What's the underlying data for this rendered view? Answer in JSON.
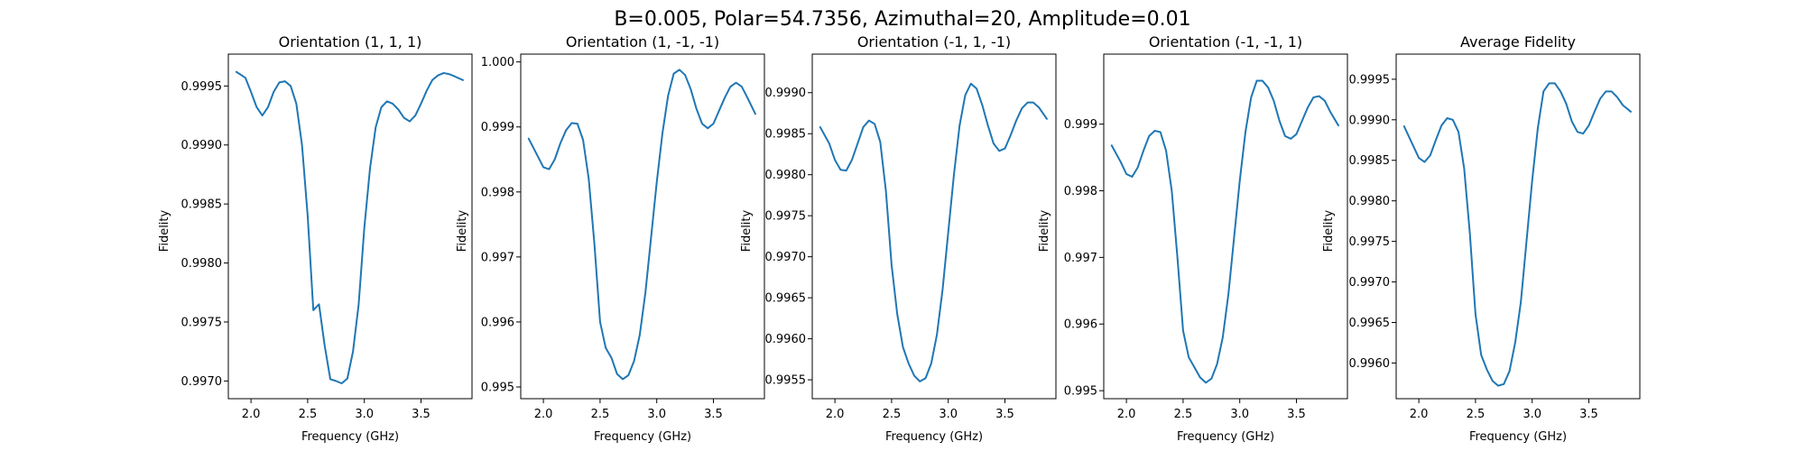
{
  "figure": {
    "suptitle": "B=0.005, Polar=54.7356, Azimuthal=20, Amplitude=0.01",
    "line_color": "#1f77b4"
  },
  "chart_data": [
    {
      "type": "line",
      "title": "Orientation (1, 1, 1)",
      "xlabel": "Frequency (GHz)",
      "ylabel": "Fidelity",
      "xlim": [
        1.8,
        3.95
      ],
      "ylim": [
        0.99685,
        0.99977
      ],
      "xticks": [
        2.0,
        2.5,
        3.0,
        3.5
      ],
      "xticklabels": [
        "2.0",
        "2.5",
        "3.0",
        "3.5"
      ],
      "yticks": [
        0.997,
        0.9975,
        0.998,
        0.9985,
        0.999,
        0.9995
      ],
      "yticklabels": [
        "0.9970",
        "0.9975",
        "0.9980",
        "0.9985",
        "0.9990",
        "0.9995"
      ],
      "grid": false,
      "series": [
        {
          "x": [
            1.87,
            1.95,
            2.0,
            2.05,
            2.1,
            2.15,
            2.2,
            2.25,
            2.3,
            2.35,
            2.4,
            2.45,
            2.5,
            2.55,
            2.6,
            2.65,
            2.7,
            2.75,
            2.8,
            2.85,
            2.9,
            2.95,
            3.0,
            3.05,
            3.1,
            3.15,
            3.2,
            3.25,
            3.3,
            3.35,
            3.4,
            3.45,
            3.5,
            3.55,
            3.6,
            3.65,
            3.7,
            3.75,
            3.8,
            3.87
          ],
          "values": [
            0.99962,
            0.99957,
            0.99945,
            0.99932,
            0.99925,
            0.99932,
            0.99945,
            0.99953,
            0.99954,
            0.9995,
            0.99935,
            0.999,
            0.9984,
            0.9976,
            0.99765,
            0.9973,
            0.997015,
            0.997,
            0.99698,
            0.99702,
            0.99725,
            0.99765,
            0.9983,
            0.9988,
            0.99915,
            0.99932,
            0.99937,
            0.99935,
            0.9993,
            0.99923,
            0.9992,
            0.99925,
            0.99935,
            0.99946,
            0.99955,
            0.99959,
            0.99961,
            0.9996,
            0.99958,
            0.99955
          ]
        }
      ]
    },
    {
      "type": "line",
      "title": "Orientation (1, -1, -1)",
      "xlabel": "Frequency (GHz)",
      "ylabel": "Fidelity",
      "xlim": [
        1.8,
        3.95
      ],
      "ylim": [
        0.99482,
        1.00012
      ],
      "xticks": [
        2.0,
        2.5,
        3.0,
        3.5
      ],
      "xticklabels": [
        "2.0",
        "2.5",
        "3.0",
        "3.5"
      ],
      "yticks": [
        0.995,
        0.996,
        0.997,
        0.998,
        0.999,
        1.0
      ],
      "yticklabels": [
        "0.995",
        "0.996",
        "0.997",
        "0.998",
        "0.999",
        "1.000"
      ],
      "grid": false,
      "series": [
        {
          "x": [
            1.87,
            1.95,
            2.0,
            2.05,
            2.1,
            2.15,
            2.2,
            2.25,
            2.3,
            2.35,
            2.4,
            2.45,
            2.5,
            2.55,
            2.6,
            2.65,
            2.7,
            2.75,
            2.8,
            2.85,
            2.9,
            2.95,
            3.0,
            3.05,
            3.1,
            3.15,
            3.2,
            3.25,
            3.3,
            3.35,
            3.4,
            3.45,
            3.5,
            3.55,
            3.6,
            3.65,
            3.7,
            3.75,
            3.8,
            3.87
          ],
          "values": [
            0.99882,
            0.99855,
            0.99838,
            0.99835,
            0.9985,
            0.99875,
            0.99895,
            0.99906,
            0.99905,
            0.9988,
            0.9982,
            0.9972,
            0.996,
            0.9956,
            0.99545,
            0.9952,
            0.99512,
            0.99518,
            0.9954,
            0.9958,
            0.99645,
            0.9973,
            0.99815,
            0.9989,
            0.99948,
            0.99982,
            0.99988,
            0.9998,
            0.99958,
            0.99928,
            0.99905,
            0.99898,
            0.99905,
            0.99925,
            0.99945,
            0.99962,
            0.99968,
            0.99962,
            0.99945,
            0.9992
          ]
        }
      ]
    },
    {
      "type": "line",
      "title": "Orientation (-1, 1, -1)",
      "xlabel": "Frequency (GHz)",
      "ylabel": "Fidelity",
      "xlim": [
        1.8,
        3.95
      ],
      "ylim": [
        0.99527,
        0.99947
      ],
      "xticks": [
        2.0,
        2.5,
        3.0,
        3.5
      ],
      "xticklabels": [
        "2.0",
        "2.5",
        "3.0",
        "3.5"
      ],
      "yticks": [
        0.9955,
        0.996,
        0.9965,
        0.997,
        0.9975,
        0.998,
        0.9985,
        0.999
      ],
      "yticklabels": [
        "0.9955",
        "0.9960",
        "0.9965",
        "0.9970",
        "0.9975",
        "0.9980",
        "0.9985",
        "0.9990"
      ],
      "grid": false,
      "series": [
        {
          "x": [
            1.87,
            1.95,
            2.0,
            2.05,
            2.1,
            2.15,
            2.2,
            2.25,
            2.3,
            2.35,
            2.4,
            2.45,
            2.5,
            2.55,
            2.6,
            2.65,
            2.7,
            2.75,
            2.8,
            2.85,
            2.9,
            2.95,
            3.0,
            3.05,
            3.1,
            3.15,
            3.2,
            3.25,
            3.3,
            3.35,
            3.4,
            3.45,
            3.5,
            3.55,
            3.6,
            3.65,
            3.7,
            3.75,
            3.8,
            3.87
          ],
          "values": [
            0.99858,
            0.99838,
            0.99818,
            0.99806,
            0.99805,
            0.99818,
            0.99838,
            0.99858,
            0.99866,
            0.99862,
            0.9984,
            0.9978,
            0.9969,
            0.9963,
            0.9959,
            0.9957,
            0.99555,
            0.99548,
            0.99552,
            0.9957,
            0.99605,
            0.9966,
            0.9973,
            0.998,
            0.9986,
            0.99897,
            0.99911,
            0.99905,
            0.99885,
            0.9986,
            0.99838,
            0.99829,
            0.99832,
            0.99848,
            0.99866,
            0.99881,
            0.99888,
            0.99888,
            0.99882,
            0.99868
          ]
        }
      ]
    },
    {
      "type": "line",
      "title": "Orientation (-1, -1, 1)",
      "xlabel": "Frequency (GHz)",
      "ylabel": "Fidelity",
      "xlim": [
        1.8,
        3.95
      ],
      "ylim": [
        0.99488,
        1.00005
      ],
      "xticks": [
        2.0,
        2.5,
        3.0,
        3.5
      ],
      "xticklabels": [
        "2.0",
        "2.5",
        "3.0",
        "3.5"
      ],
      "yticks": [
        0.995,
        0.996,
        0.997,
        0.998,
        0.999
      ],
      "yticklabels": [
        "0.995",
        "0.996",
        "0.997",
        "0.998",
        "0.999"
      ],
      "grid": false,
      "series": [
        {
          "x": [
            1.87,
            1.95,
            2.0,
            2.05,
            2.1,
            2.15,
            2.2,
            2.25,
            2.3,
            2.35,
            2.4,
            2.45,
            2.5,
            2.55,
            2.6,
            2.65,
            2.7,
            2.75,
            2.8,
            2.85,
            2.9,
            2.95,
            3.0,
            3.05,
            3.1,
            3.15,
            3.2,
            3.25,
            3.3,
            3.35,
            3.4,
            3.45,
            3.5,
            3.55,
            3.6,
            3.65,
            3.7,
            3.75,
            3.8,
            3.87
          ],
          "values": [
            0.99868,
            0.99843,
            0.99825,
            0.99821,
            0.99835,
            0.9986,
            0.99882,
            0.9989,
            0.99888,
            0.9986,
            0.998,
            0.997,
            0.9959,
            0.9955,
            0.99535,
            0.9952,
            0.99512,
            0.99518,
            0.9954,
            0.9958,
            0.99645,
            0.9973,
            0.99815,
            0.99888,
            0.9994,
            0.99965,
            0.99965,
            0.99955,
            0.99935,
            0.99905,
            0.99882,
            0.99878,
            0.99885,
            0.99905,
            0.99925,
            0.9994,
            0.99942,
            0.99935,
            0.99918,
            0.99898
          ]
        }
      ]
    },
    {
      "type": "line",
      "title": "Average Fidelity",
      "xlabel": "Frequency (GHz)",
      "ylabel": "Fidelity",
      "xlim": [
        1.8,
        3.95
      ],
      "ylim": [
        0.99556,
        0.99981
      ],
      "xticks": [
        2.0,
        2.5,
        3.0,
        3.5
      ],
      "xticklabels": [
        "2.0",
        "2.5",
        "3.0",
        "3.5"
      ],
      "yticks": [
        0.996,
        0.9965,
        0.997,
        0.9975,
        0.998,
        0.9985,
        0.999,
        0.9995
      ],
      "yticklabels": [
        "0.9960",
        "0.9965",
        "0.9970",
        "0.9975",
        "0.9980",
        "0.9985",
        "0.9990",
        "0.9995"
      ],
      "grid": false,
      "series": [
        {
          "x": [
            1.87,
            1.95,
            2.0,
            2.05,
            2.1,
            2.15,
            2.2,
            2.25,
            2.3,
            2.35,
            2.4,
            2.45,
            2.5,
            2.55,
            2.6,
            2.65,
            2.7,
            2.75,
            2.8,
            2.85,
            2.9,
            2.95,
            3.0,
            3.05,
            3.1,
            3.15,
            3.2,
            3.25,
            3.3,
            3.35,
            3.4,
            3.45,
            3.5,
            3.55,
            3.6,
            3.65,
            3.7,
            3.75,
            3.8,
            3.87
          ],
          "values": [
            0.99892,
            0.99868,
            0.99853,
            0.99848,
            0.99856,
            0.99875,
            0.99893,
            0.99902,
            0.999,
            0.99885,
            0.9984,
            0.9976,
            0.9966,
            0.9961,
            0.99592,
            0.99578,
            0.99572,
            0.99574,
            0.9959,
            0.99625,
            0.99675,
            0.9975,
            0.99825,
            0.9989,
            0.99935,
            0.99945,
            0.99945,
            0.99935,
            0.9992,
            0.99898,
            0.99885,
            0.99883,
            0.99893,
            0.9991,
            0.99926,
            0.99935,
            0.99935,
            0.99928,
            0.99918,
            0.9991
          ]
        }
      ]
    }
  ]
}
